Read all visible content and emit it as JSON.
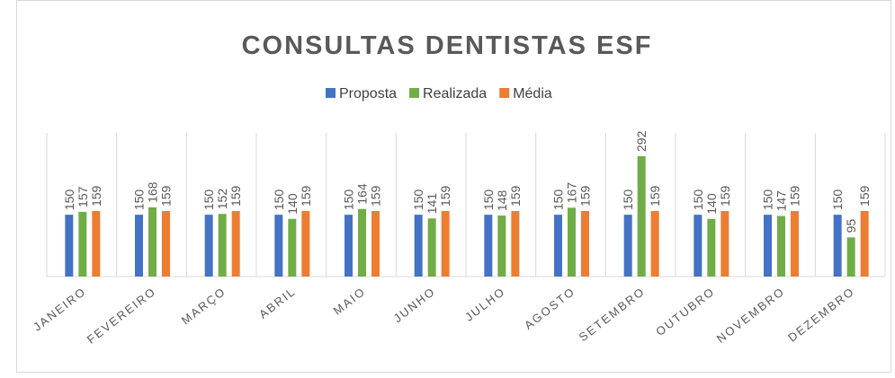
{
  "chart_data": {
    "type": "bar",
    "title": "CONSULTAS DENTISTAS ESF",
    "categories": [
      "JANEIRO",
      "FEVEREIRO",
      "MARÇO",
      "ABRIL",
      "MAIO",
      "JUNHO",
      "JULHO",
      "AGOSTO",
      "SETEMBRO",
      "OUTUBRO",
      "NOVEMBRO",
      "DEZEMBRO"
    ],
    "series": [
      {
        "name": "Proposta",
        "color": "#4472c4",
        "values": [
          150,
          150,
          150,
          150,
          150,
          150,
          150,
          150,
          150,
          150,
          150,
          150
        ]
      },
      {
        "name": "Realizada",
        "color": "#70ad47",
        "values": [
          157,
          168,
          152,
          140,
          164,
          141,
          148,
          167,
          292,
          140,
          147,
          95
        ]
      },
      {
        "name": "Média",
        "color": "#ed7d31",
        "values": [
          159,
          159,
          159,
          159,
          159,
          159,
          159,
          159,
          159,
          159,
          159,
          159
        ]
      }
    ],
    "grid": true
  }
}
